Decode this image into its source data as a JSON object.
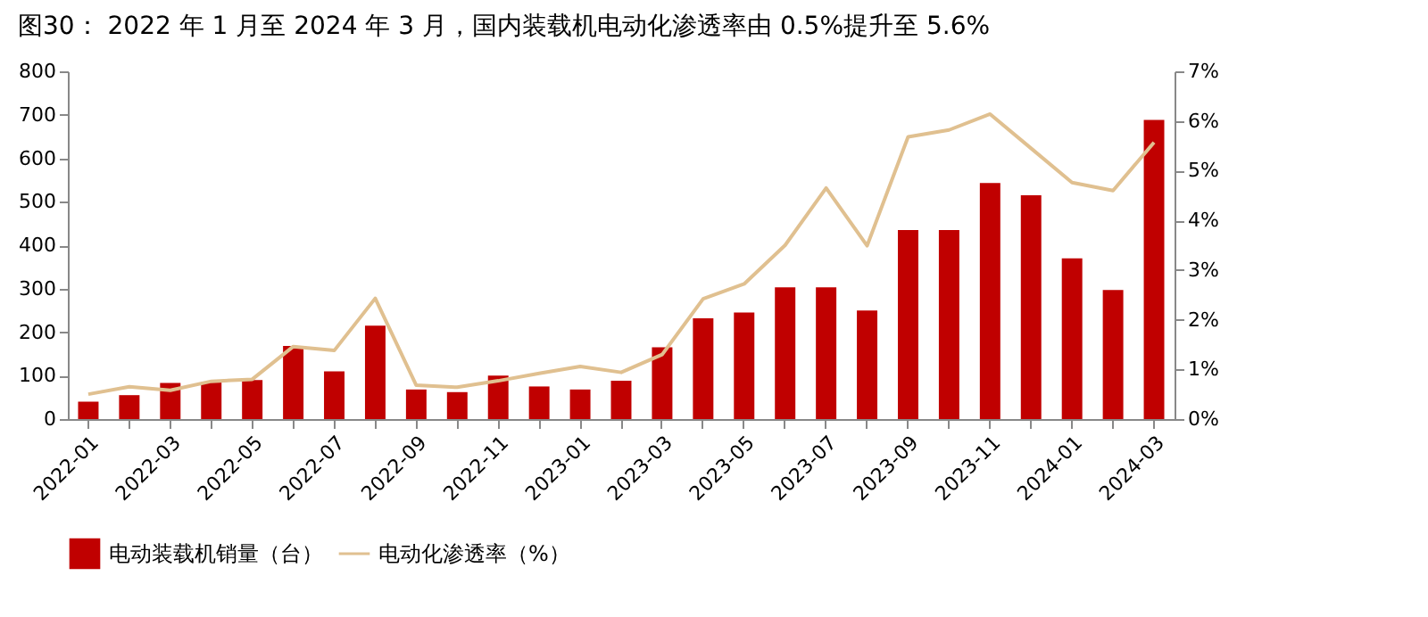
{
  "chart_data": {
    "type": "bar",
    "title": "图30：  2022 年 1 月至 2024 年 3 月，国内装载机电动化渗透率由 0.5%提升至 5.6%",
    "categories": [
      "2022-01",
      null,
      "2022-03",
      null,
      "2022-05",
      null,
      "2022-07",
      null,
      "2022-09",
      null,
      "2022-11",
      null,
      "2023-01",
      null,
      "2023-03",
      null,
      "2023-05",
      null,
      "2023-07",
      null,
      "2023-09",
      null,
      "2023-11",
      null,
      "2024-01",
      null,
      "2024-03"
    ],
    "series": [
      {
        "name": "电动装载机销量（台）",
        "color": "#c00000",
        "values": [
          40,
          55,
          83,
          85,
          90,
          168,
          110,
          215,
          68,
          62,
          100,
          75,
          68,
          88,
          165,
          232,
          245,
          303,
          303,
          250,
          435,
          435,
          543,
          515,
          370,
          297,
          688
        ]
      },
      {
        "name": "电动化渗透率（%）",
        "type": "line",
        "axis": "y2",
        "color": "#e0c090",
        "values": [
          0.5,
          0.65,
          0.58,
          0.76,
          0.8,
          1.46,
          1.38,
          2.43,
          0.68,
          0.64,
          0.77,
          0.92,
          1.06,
          0.94,
          1.3,
          2.42,
          2.72,
          3.5,
          4.65,
          3.49,
          5.68,
          5.82,
          6.14,
          5.45,
          4.76,
          4.6,
          5.57
        ]
      }
    ],
    "ylim": [
      0,
      800
    ],
    "yticks": [
      0,
      100,
      200,
      300,
      400,
      500,
      600,
      700,
      800
    ],
    "y2lim": [
      0,
      7
    ],
    "y2ticks": [
      {
        "value": 0,
        "label": "0%"
      },
      {
        "value": 1,
        "label": "1%"
      },
      {
        "value": 2,
        "label": "2%"
      },
      {
        "value": 3,
        "label": "3%"
      },
      {
        "value": 4,
        "label": "4%"
      },
      {
        "value": 5,
        "label": "5%"
      },
      {
        "value": 6,
        "label": "6%"
      },
      {
        "value": 7,
        "label": "7%"
      }
    ],
    "grid": false,
    "legend": "bottom"
  }
}
